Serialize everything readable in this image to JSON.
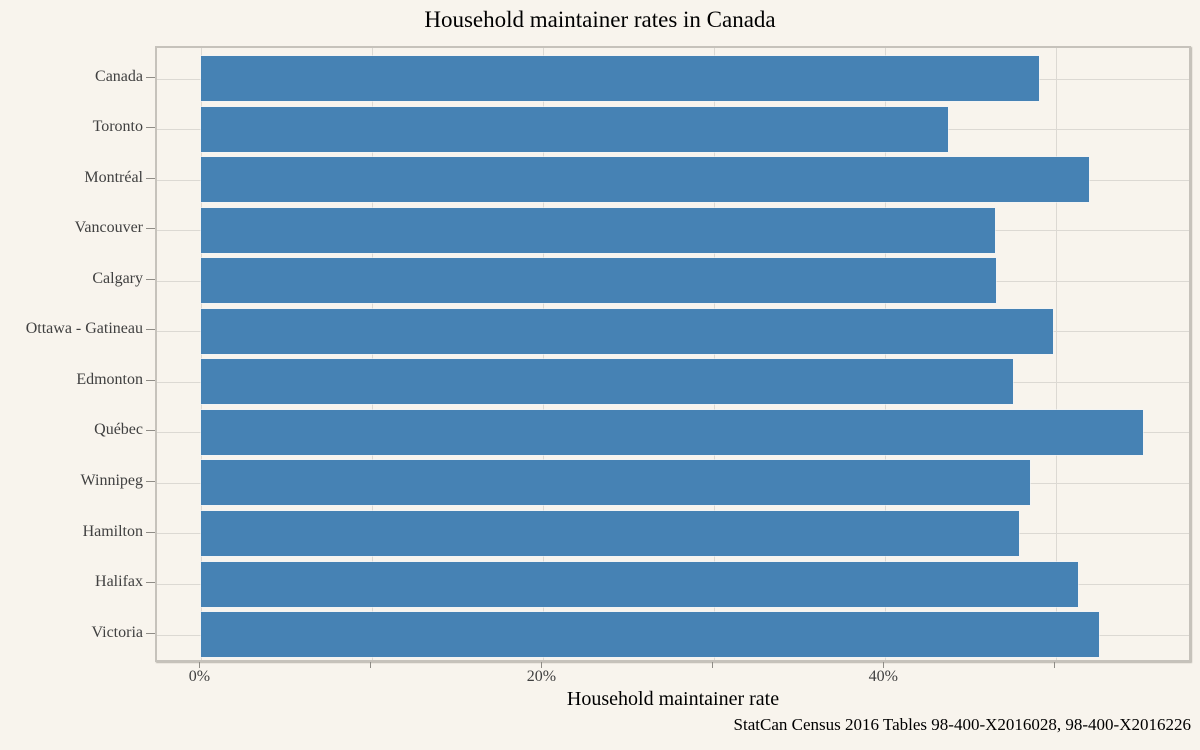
{
  "chart_data": {
    "type": "bar",
    "orientation": "horizontal",
    "title": "Household maintainer rates in Canada",
    "xlabel": "Household maintainer rate",
    "ylabel": "",
    "caption": "StatCan Census 2016 Tables 98-400-X2016028, 98-400-X2016226",
    "categories": [
      "Canada",
      "Toronto",
      "Montréal",
      "Vancouver",
      "Calgary",
      "Ottawa - Gatineau",
      "Edmonton",
      "Québec",
      "Winnipeg",
      "Hamilton",
      "Halifax",
      "Victoria"
    ],
    "values": [
      49.0,
      43.7,
      51.9,
      46.4,
      46.5,
      49.8,
      47.5,
      55.1,
      48.5,
      47.8,
      51.3,
      52.5
    ],
    "unit": "%",
    "xlim": [
      -2.6,
      58.0
    ],
    "x_gridline_values": [
      0,
      10,
      20,
      30,
      40,
      50
    ],
    "x_tick_labels": [
      {
        "value": 0,
        "label": "0%"
      },
      {
        "value": 20,
        "label": "20%"
      },
      {
        "value": 40,
        "label": "40%"
      }
    ],
    "grid": "major-xy",
    "legend": false,
    "colors": {
      "bar": "#4682B4",
      "background": "#F8F4ED",
      "gridline": "#DCD9D3",
      "panel_border": "#C6C2BB",
      "tick": "#8F8C86",
      "tick_label": "#404040",
      "category_label": "#404040",
      "title": "#000000"
    }
  }
}
